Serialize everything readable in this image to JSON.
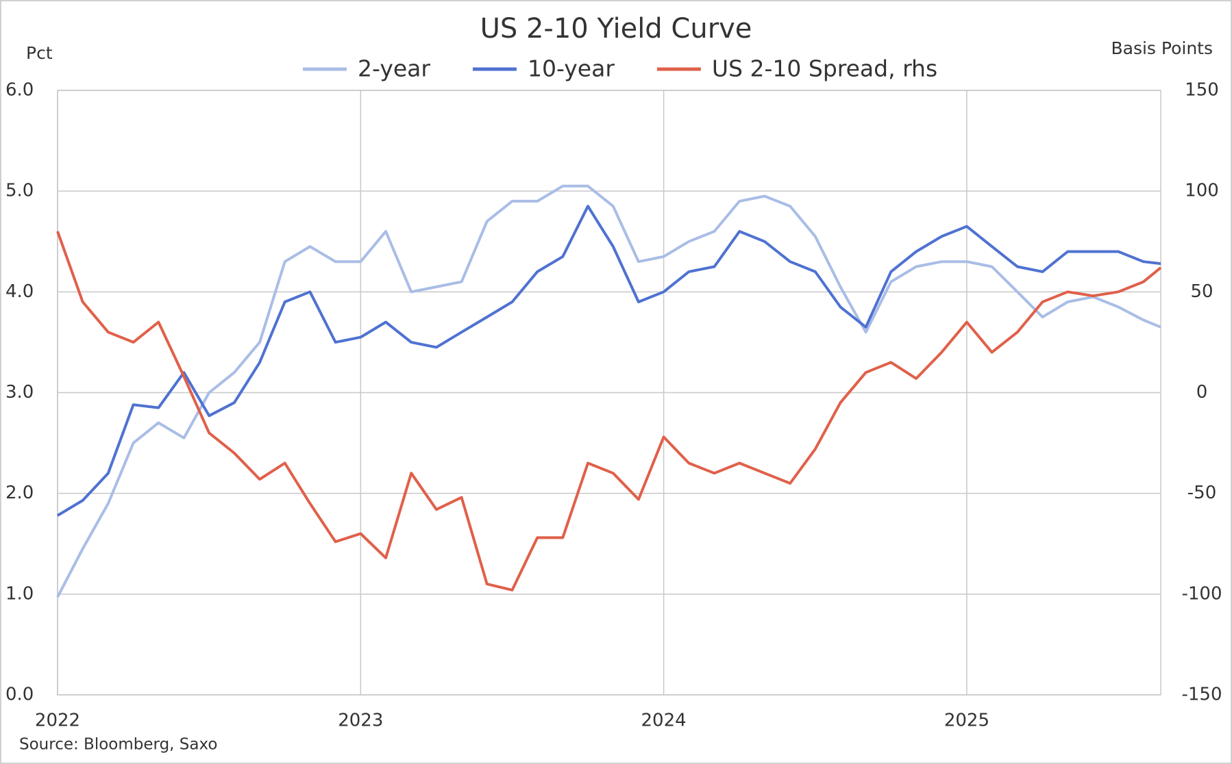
{
  "chart_data": {
    "type": "line",
    "title": "US 2-10 Yield Curve",
    "y_label": "Pct",
    "y2_label": "Basis  Points",
    "source": "Source: Bloomberg, Saxo",
    "x": [
      2022,
      2022.083,
      2022.167,
      2022.25,
      2022.333,
      2022.417,
      2022.5,
      2022.583,
      2022.667,
      2022.75,
      2022.833,
      2022.917,
      2023,
      2023.083,
      2023.167,
      2023.25,
      2023.333,
      2023.417,
      2023.5,
      2023.583,
      2023.667,
      2023.75,
      2023.833,
      2023.917,
      2024,
      2024.083,
      2024.167,
      2024.25,
      2024.333,
      2024.417,
      2024.5,
      2024.583,
      2024.667,
      2024.75,
      2024.833,
      2024.917,
      2025,
      2025.083,
      2025.167,
      2025.25,
      2025.333,
      2025.417,
      2025.5,
      2025.583,
      2025.64
    ],
    "series": [
      {
        "name": "2-year",
        "color": "#a9bde6",
        "values": [
          0.97,
          1.45,
          1.9,
          2.5,
          2.7,
          2.55,
          3.0,
          3.2,
          3.5,
          4.3,
          4.45,
          4.3,
          4.3,
          4.6,
          4.0,
          4.05,
          4.1,
          4.7,
          4.9,
          4.9,
          5.05,
          5.05,
          4.85,
          4.3,
          4.35,
          4.5,
          4.6,
          4.9,
          4.95,
          4.85,
          4.55,
          4.05,
          3.6,
          4.1,
          4.25,
          4.3,
          4.3,
          4.25,
          4.0,
          3.75,
          3.9,
          3.95,
          3.85,
          3.72,
          3.65
        ]
      },
      {
        "name": "10-year",
        "color": "#4f72d1",
        "values": [
          1.78,
          1.93,
          2.2,
          2.88,
          2.85,
          3.2,
          2.77,
          2.9,
          3.3,
          3.9,
          4.0,
          3.5,
          3.55,
          3.7,
          3.5,
          3.45,
          3.6,
          3.75,
          3.9,
          4.2,
          4.35,
          4.85,
          4.45,
          3.9,
          4.0,
          4.2,
          4.25,
          4.6,
          4.5,
          4.3,
          4.2,
          3.85,
          3.65,
          4.2,
          4.4,
          4.55,
          4.65,
          4.45,
          4.25,
          4.2,
          4.4,
          4.4,
          4.4,
          4.3,
          4.28
        ]
      },
      {
        "name": "US 2-10 Spread, rhs",
        "color": "#e0604a",
        "axis": "y2",
        "values": [
          80,
          45,
          30,
          25,
          35,
          8,
          -20,
          -30,
          -43,
          -35,
          -55,
          -74,
          -70,
          -82,
          -40,
          -58,
          -52,
          -95,
          -98,
          -72,
          -72,
          -35,
          -40,
          -53,
          -22,
          -35,
          -40,
          -35,
          -40,
          -45,
          -28,
          -5,
          10,
          15,
          7,
          20,
          35,
          20,
          30,
          45,
          50,
          48,
          50,
          55,
          62
        ]
      }
    ],
    "xlim": [
      2022,
      2025.64
    ],
    "xticks": [
      2022,
      2023,
      2024,
      2025
    ],
    "ylim": [
      0,
      6
    ],
    "yticks": [
      {
        "value": 0,
        "label": "0.0"
      },
      {
        "value": 1,
        "label": "1.0"
      },
      {
        "value": 2,
        "label": "2.0"
      },
      {
        "value": 3,
        "label": "3.0"
      },
      {
        "value": 4,
        "label": "4.0"
      },
      {
        "value": 5,
        "label": "5.0"
      },
      {
        "value": 6,
        "label": "6.0"
      }
    ],
    "y2lim": [
      -150,
      150
    ],
    "y2ticks": [
      -150,
      -100,
      -50,
      0,
      50,
      100,
      150
    ],
    "grid": true
  }
}
